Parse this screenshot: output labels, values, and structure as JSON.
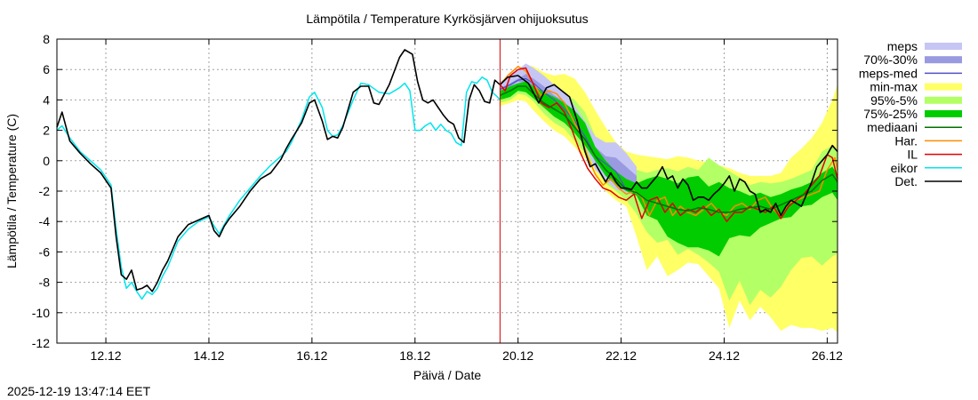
{
  "chart_data": {
    "type": "line",
    "title": "Lämpötila / Temperature   Kyrkösjärven ohijuoksutus",
    "xlabel": "Päivä / Date",
    "ylabel": "Lämpötila / Temperature (C)",
    "timestamp": "2025-12-19 13:47:14 EET",
    "xlim": [
      11.05,
      26.2
    ],
    "ylim": [
      -12,
      8
    ],
    "grid": true,
    "x_ticks": [
      {
        "x": 12.0,
        "label": "12.12"
      },
      {
        "x": 14.0,
        "label": "14.12"
      },
      {
        "x": 16.0,
        "label": "16.12"
      },
      {
        "x": 18.0,
        "label": "18.12"
      },
      {
        "x": 20.0,
        "label": "20.12"
      },
      {
        "x": 22.0,
        "label": "22.12"
      },
      {
        "x": 24.0,
        "label": "24.12"
      },
      {
        "x": 26.0,
        "label": "26.12"
      }
    ],
    "y_ticks": [
      {
        "y": 8,
        "label": "8"
      },
      {
        "y": 6,
        "label": "6"
      },
      {
        "y": 4,
        "label": "4"
      },
      {
        "y": 2,
        "label": "2"
      },
      {
        "y": 0,
        "label": "0"
      },
      {
        "y": -2,
        "label": "-2"
      },
      {
        "y": -4,
        "label": "-4"
      },
      {
        "y": -6,
        "label": "-6"
      },
      {
        "y": -8,
        "label": "-8"
      },
      {
        "y": -10,
        "label": "-10"
      },
      {
        "y": -12,
        "label": "-12"
      }
    ],
    "now_x": 19.65,
    "colors": {
      "meps": "#c6c6f5",
      "p70_30": "#9a9ae0",
      "meps_med": "#5050c8",
      "minmax": "#ffff66",
      "p95_5": "#b3ff66",
      "p75_25": "#00cc00",
      "mediaani": "#007000",
      "har": "#ff8c00",
      "il": "#e00000",
      "eikor": "#00e5ee",
      "det": "#000000",
      "now_line": "#d00000"
    },
    "legend": [
      {
        "key": "meps",
        "label": "meps",
        "kind": "band"
      },
      {
        "key": "p70_30",
        "label": "70%-30%",
        "kind": "band"
      },
      {
        "key": "meps_med",
        "label": "meps-med",
        "kind": "line"
      },
      {
        "key": "minmax",
        "label": "min-max",
        "kind": "band"
      },
      {
        "key": "p95_5",
        "label": "95%-5%",
        "kind": "band"
      },
      {
        "key": "p75_25",
        "label": "75%-25%",
        "kind": "band"
      },
      {
        "key": "mediaani",
        "label": "mediaani",
        "kind": "line"
      },
      {
        "key": "har",
        "label": "Har.",
        "kind": "line"
      },
      {
        "key": "il",
        "label": "IL",
        "kind": "line"
      },
      {
        "key": "eikor",
        "label": "eikor",
        "kind": "line"
      },
      {
        "key": "det",
        "label": "Det.",
        "kind": "line"
      }
    ],
    "band_x": [
      19.65,
      19.85,
      20.0,
      20.15,
      20.3,
      20.5,
      20.7,
      20.9,
      21.1,
      21.3,
      21.5,
      21.7,
      21.9,
      22.1,
      22.3,
      22.5,
      22.7,
      22.9,
      23.1,
      23.3,
      23.5,
      23.7,
      23.9,
      24.1,
      24.3,
      24.5,
      24.7,
      24.9,
      25.1,
      25.3,
      25.5,
      25.7,
      25.9,
      26.1,
      26.2
    ],
    "bands": {
      "minmax": {
        "upper": [
          5.2,
          5.6,
          6.0,
          6.3,
          6.2,
          5.8,
          5.6,
          5.7,
          5.4,
          4.5,
          3.3,
          2.2,
          1.2,
          0.6,
          0.4,
          0.3,
          0.2,
          0.1,
          0.3,
          0.2,
          0.0,
          -0.1,
          -0.3,
          -0.5,
          -0.8,
          -1.0,
          -1.0,
          -1.0,
          -0.8,
          0.2,
          0.8,
          1.5,
          2.5,
          4.0,
          5.0
        ],
        "lower": [
          3.6,
          3.8,
          4.0,
          3.9,
          3.3,
          2.6,
          2.0,
          1.6,
          0.9,
          0.2,
          -1.0,
          -2.0,
          -2.6,
          -3.0,
          -5.0,
          -7.2,
          -6.3,
          -7.6,
          -7.2,
          -6.7,
          -6.8,
          -7.6,
          -8.4,
          -11.0,
          -9.2,
          -10.5,
          -9.6,
          -10.3,
          -11.2,
          -10.8,
          -11.0,
          -11.0,
          -11.2,
          -11.0,
          -11.3
        ]
      },
      "p95_5": {
        "upper": [
          4.9,
          5.1,
          5.3,
          5.4,
          5.3,
          5.0,
          4.6,
          4.4,
          4.0,
          3.2,
          1.6,
          0.6,
          0.1,
          -0.3,
          -0.6,
          -0.8,
          -0.6,
          -0.5,
          -0.7,
          -0.4,
          -0.6,
          0.2,
          -0.3,
          -0.7,
          -1.1,
          -1.6,
          -1.4,
          -1.5,
          -1.4,
          -1.2,
          -0.9,
          -0.6,
          0.6,
          1.0,
          0.5
        ],
        "lower": [
          3.8,
          4.0,
          4.4,
          4.3,
          3.9,
          3.1,
          2.5,
          2.1,
          1.3,
          0.5,
          -0.5,
          -1.5,
          -2.0,
          -2.6,
          -3.5,
          -4.7,
          -5.4,
          -5.2,
          -6.2,
          -5.8,
          -6.2,
          -6.7,
          -7.3,
          -9.2,
          -7.9,
          -9.5,
          -8.5,
          -9.0,
          -8.3,
          -7.2,
          -6.4,
          -6.3,
          -6.9,
          -6.3,
          -6.1
        ]
      },
      "p75_25": {
        "upper": [
          4.6,
          4.9,
          5.1,
          5.2,
          4.9,
          4.5,
          4.2,
          3.8,
          3.3,
          2.5,
          0.9,
          0.0,
          -0.7,
          -1.2,
          -1.5,
          -1.2,
          -1.0,
          -1.2,
          -1.5,
          -1.1,
          -1.0,
          -1.7,
          -1.4,
          -1.8,
          -2.0,
          -2.3,
          -2.1,
          -2.4,
          -2.2,
          -1.9,
          -1.7,
          -1.4,
          -0.8,
          -0.4,
          -0.9
        ],
        "lower": [
          4.0,
          4.2,
          4.6,
          4.5,
          4.1,
          3.5,
          2.9,
          2.5,
          1.8,
          1.0,
          0.0,
          -1.0,
          -1.6,
          -2.0,
          -2.3,
          -3.6,
          -3.9,
          -5.0,
          -5.4,
          -5.7,
          -5.7,
          -5.9,
          -6.3,
          -5.1,
          -4.9,
          -5.0,
          -4.4,
          -4.1,
          -3.8,
          -3.7,
          -3.0,
          -2.9,
          -2.4,
          -2.1,
          -2.6
        ]
      },
      "meps": {
        "upper": [
          5.2,
          5.6,
          6.0,
          6.4,
          6.1,
          5.6,
          5.0,
          4.5,
          3.6,
          2.6,
          1.6,
          1.2,
          1.2,
          0.5,
          -0.4
        ],
        "lower": [
          4.5,
          4.8,
          5.0,
          4.9,
          4.5,
          3.9,
          3.3,
          2.7,
          2.1,
          1.0,
          -0.6,
          -1.3,
          -1.9,
          -2.1,
          -2.3
        ]
      },
      "p70_30": {
        "upper": [
          4.8,
          5.1,
          5.4,
          5.7,
          5.4,
          4.9,
          4.3,
          3.9,
          3.0,
          2.0,
          0.9,
          0.3,
          0.2,
          -0.4,
          -1.0
        ],
        "lower": [
          4.6,
          4.9,
          5.2,
          5.1,
          4.8,
          4.2,
          3.7,
          3.2,
          2.5,
          1.5,
          -0.1,
          -0.7,
          -1.2,
          -1.6,
          -1.8
        ]
      }
    },
    "series": [
      {
        "key": "eikor",
        "name": "eikor",
        "x": [
          11.05,
          11.15,
          11.3,
          11.5,
          11.7,
          11.9,
          12.1,
          12.2,
          12.3,
          12.4,
          12.5,
          12.6,
          12.7,
          12.8,
          12.9,
          13.0,
          13.1,
          13.2,
          13.4,
          13.6,
          13.8,
          14.0,
          14.1,
          14.2,
          14.3,
          14.4,
          14.6,
          14.8,
          15.0,
          15.2,
          15.4,
          15.5,
          15.6,
          15.8,
          15.95,
          16.05,
          16.2,
          16.3,
          16.4,
          16.5,
          16.6,
          16.8,
          16.95,
          17.1,
          17.3,
          17.5,
          17.7,
          17.8,
          17.9,
          18.0,
          18.1,
          18.2,
          18.3,
          18.4,
          18.5,
          18.6,
          18.7,
          18.8,
          18.9,
          19.0,
          19.1,
          19.2,
          19.3,
          19.4,
          19.5,
          19.6,
          19.65
        ],
        "y": [
          2.0,
          2.3,
          1.5,
          0.6,
          0.0,
          -0.6,
          -1.6,
          -4.5,
          -7.0,
          -8.4,
          -8.0,
          -8.6,
          -9.1,
          -8.6,
          -8.8,
          -8.4,
          -7.6,
          -7.0,
          -5.3,
          -4.5,
          -4.0,
          -3.7,
          -4.3,
          -4.8,
          -4.2,
          -3.6,
          -2.6,
          -1.8,
          -1.0,
          -0.3,
          0.3,
          0.6,
          1.2,
          2.7,
          4.2,
          4.5,
          3.5,
          2.0,
          1.6,
          1.7,
          2.3,
          4.0,
          5.1,
          5.0,
          4.5,
          4.4,
          4.8,
          5.1,
          4.6,
          2.0,
          2.0,
          2.3,
          2.5,
          2.0,
          2.4,
          2.0,
          1.8,
          1.2,
          1.0,
          4.5,
          5.2,
          5.1,
          5.5,
          5.3,
          4.5,
          4.2,
          4.0
        ]
      },
      {
        "key": "det",
        "name": "Det.",
        "x": [
          11.05,
          11.15,
          11.3,
          11.5,
          11.7,
          11.9,
          12.1,
          12.2,
          12.3,
          12.4,
          12.5,
          12.6,
          12.7,
          12.8,
          12.9,
          13.0,
          13.1,
          13.2,
          13.4,
          13.6,
          13.8,
          14.0,
          14.1,
          14.2,
          14.3,
          14.4,
          14.6,
          14.8,
          15.0,
          15.2,
          15.4,
          15.5,
          15.6,
          15.8,
          15.95,
          16.05,
          16.2,
          16.3,
          16.4,
          16.5,
          16.6,
          16.8,
          16.95,
          17.1,
          17.2,
          17.3,
          17.5,
          17.7,
          17.8,
          17.95,
          18.05,
          18.15,
          18.25,
          18.35,
          18.45,
          18.55,
          18.65,
          18.75,
          18.85,
          18.95,
          19.05,
          19.15,
          19.25,
          19.35,
          19.45,
          19.55,
          19.65,
          19.8,
          20.0,
          20.2,
          20.4,
          20.55,
          20.7,
          20.85,
          21.0,
          21.15,
          21.3,
          21.4,
          21.5,
          21.6,
          21.7,
          21.8,
          21.9,
          22.0,
          22.1,
          22.2,
          22.3,
          22.4,
          22.5,
          22.6,
          22.7,
          22.8,
          22.9,
          23.0,
          23.1,
          23.2,
          23.3,
          23.4,
          23.5,
          23.6,
          23.7,
          23.8,
          23.9,
          24.0,
          24.1,
          24.2,
          24.3,
          24.4,
          24.5,
          24.6,
          24.7,
          24.8,
          24.9,
          25.0,
          25.1,
          25.2,
          25.3,
          25.4,
          25.5,
          25.6,
          25.7,
          25.8,
          25.9,
          26.0,
          26.1,
          26.2
        ],
        "y": [
          2.2,
          3.2,
          1.3,
          0.5,
          -0.2,
          -0.8,
          -1.8,
          -5.0,
          -7.5,
          -7.8,
          -7.2,
          -8.5,
          -8.4,
          -8.2,
          -8.6,
          -8.0,
          -7.2,
          -6.6,
          -5.0,
          -4.2,
          -3.9,
          -3.6,
          -4.6,
          -5.0,
          -4.3,
          -3.8,
          -3.0,
          -2.0,
          -1.2,
          -0.8,
          0.1,
          0.8,
          1.4,
          2.5,
          3.8,
          4.0,
          2.6,
          1.4,
          1.6,
          1.5,
          2.2,
          4.5,
          4.9,
          4.9,
          3.8,
          3.7,
          5.0,
          6.8,
          7.3,
          7.0,
          5.2,
          4.0,
          3.8,
          4.0,
          3.5,
          3.0,
          2.6,
          2.4,
          1.5,
          1.2,
          4.0,
          5.0,
          4.6,
          3.9,
          3.8,
          5.3,
          5.0,
          5.5,
          5.6,
          5.1,
          3.8,
          4.8,
          5.0,
          4.6,
          4.2,
          2.6,
          0.6,
          -0.4,
          -0.2,
          -0.8,
          -1.4,
          -0.8,
          -1.4,
          -1.8,
          -1.8,
          -1.9,
          -1.4,
          -1.8,
          -1.8,
          -1.4,
          -1.0,
          -0.4,
          -1.2,
          -1.0,
          -1.8,
          -1.2,
          -1.6,
          -2.6,
          -2.4,
          -2.4,
          -2.6,
          -2.2,
          -1.9,
          -1.5,
          -1.0,
          -2.0,
          -1.2,
          -1.4,
          -2.0,
          -2.2,
          -3.4,
          -3.2,
          -3.4,
          -2.8,
          -3.6,
          -3.0,
          -2.6,
          -2.8,
          -3.0,
          -2.2,
          -1.4,
          -0.4,
          0.0,
          0.4,
          1.0,
          0.6
        ],
        "mode": "curve"
      },
      {
        "key": "meps_med",
        "name": "meps-med",
        "x": [
          19.65,
          19.85,
          20.0,
          20.15,
          20.3,
          20.5,
          20.7,
          20.9,
          21.1,
          21.3,
          21.5,
          21.7,
          21.9,
          22.1
        ],
        "y": [
          4.7,
          5.0,
          5.3,
          5.4,
          5.1,
          4.5,
          4.0,
          3.4,
          2.6,
          1.6,
          0.3,
          -0.2,
          -0.7,
          -1.9
        ]
      },
      {
        "key": "mediaani",
        "name": "mediaani",
        "x": [
          19.65,
          19.85,
          20.0,
          20.15,
          20.3,
          20.5,
          20.7,
          20.9,
          21.1,
          21.3,
          21.5,
          21.7,
          21.9,
          22.1,
          22.3,
          22.5,
          22.7,
          22.9,
          23.1,
          23.3,
          23.5,
          23.7,
          23.9,
          24.1,
          24.3,
          24.5,
          24.7,
          24.9,
          25.1,
          25.3,
          25.5,
          25.7,
          25.9,
          26.1,
          26.2
        ],
        "y": [
          4.3,
          4.6,
          4.9,
          4.9,
          4.4,
          3.8,
          3.4,
          3.0,
          2.2,
          1.4,
          0.3,
          -0.6,
          -1.2,
          -1.9,
          -2.1,
          -2.6,
          -2.8,
          -3.0,
          -3.2,
          -3.3,
          -3.1,
          -3.2,
          -3.4,
          -3.4,
          -3.2,
          -3.1,
          -3.0,
          -3.2,
          -2.9,
          -2.6,
          -2.3,
          -2.0,
          -1.3,
          -0.9,
          -1.4
        ]
      },
      {
        "key": "har",
        "name": "Har.",
        "x": [
          19.65,
          19.8,
          20.0,
          20.15,
          20.3,
          20.45,
          20.6,
          20.75,
          20.9,
          21.05,
          21.2,
          21.35,
          21.5,
          21.65,
          21.8,
          21.95,
          22.1,
          22.25,
          22.4,
          22.55,
          22.7,
          22.85,
          23.0,
          23.15,
          23.3,
          23.45,
          23.6,
          23.75,
          23.9,
          24.05,
          24.2,
          24.35,
          24.5,
          24.65,
          24.8,
          24.95,
          25.1,
          25.25,
          25.4,
          25.55,
          25.7,
          25.85,
          26.0,
          26.15,
          26.2
        ],
        "y": [
          5.0,
          5.6,
          6.2,
          5.9,
          5.0,
          4.3,
          4.6,
          4.4,
          3.8,
          2.8,
          1.8,
          0.3,
          -0.9,
          -1.6,
          -1.2,
          -1.8,
          -2.2,
          -2.0,
          -2.4,
          -3.6,
          -2.6,
          -2.4,
          -3.6,
          -3.0,
          -3.4,
          -3.6,
          -3.2,
          -2.8,
          -3.4,
          -3.6,
          -3.0,
          -2.8,
          -3.2,
          -2.6,
          -2.4,
          -3.2,
          -3.6,
          -2.8,
          -2.6,
          -2.4,
          -2.2,
          -2.0,
          -0.6,
          0.2,
          -0.6
        ]
      },
      {
        "key": "il",
        "name": "IL",
        "x": [
          19.65,
          19.75,
          19.85,
          20.0,
          20.15,
          20.3,
          20.45,
          20.6,
          20.75,
          20.9,
          21.05,
          21.2,
          21.35,
          21.5,
          21.65,
          21.8,
          21.95,
          22.1,
          22.25,
          22.4,
          22.55,
          22.7,
          22.85,
          23.0,
          23.15,
          23.3,
          23.45,
          23.6,
          23.75,
          23.9,
          24.05,
          24.2,
          24.35,
          24.5,
          24.65,
          24.8,
          24.95,
          25.1,
          25.25,
          25.4,
          25.55,
          25.7,
          25.85,
          26.0,
          26.1,
          26.2
        ],
        "y": [
          5.0,
          4.6,
          5.6,
          6.0,
          6.1,
          5.0,
          3.8,
          3.5,
          3.8,
          3.2,
          2.0,
          0.6,
          -0.5,
          -1.2,
          -1.8,
          -2.0,
          -2.4,
          -2.6,
          -2.2,
          -3.8,
          -2.6,
          -2.4,
          -3.4,
          -2.8,
          -3.6,
          -3.2,
          -3.4,
          -3.0,
          -3.6,
          -3.2,
          -4.0,
          -3.4,
          -3.4,
          -3.0,
          -3.2,
          -3.4,
          -3.0,
          -3.8,
          -3.0,
          -2.6,
          -2.2,
          -1.6,
          -1.0,
          0.4,
          0.2,
          -1.2
        ]
      }
    ]
  }
}
